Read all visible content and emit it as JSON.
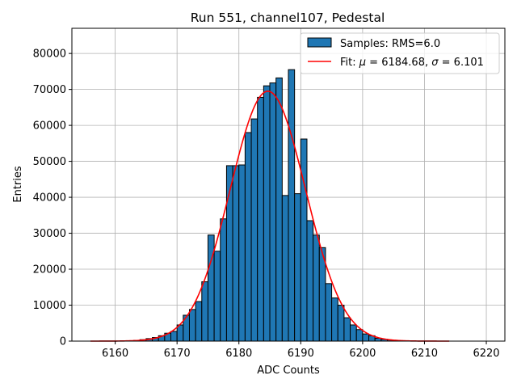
{
  "chart_data": {
    "type": "bar",
    "title": "Run 551, channel107, Pedestal",
    "xlabel": "ADC Counts",
    "ylabel": "Entries",
    "xlim": [
      6153,
      6223
    ],
    "ylim": [
      0,
      87000
    ],
    "xticks": [
      6160,
      6170,
      6180,
      6190,
      6200,
      6210,
      6220
    ],
    "yticks": [
      0,
      10000,
      20000,
      30000,
      40000,
      50000,
      60000,
      70000,
      80000
    ],
    "grid": true,
    "legend_position": "top-right",
    "colors": {
      "bar_fill": "#1f77b4",
      "bar_edge": "#000000",
      "fit_line": "#ff0000",
      "grid": "#b0b0b0"
    },
    "histogram": {
      "name": "Samples: RMS=6.0",
      "bin_width": 1,
      "bins_start": [
        6163,
        6164,
        6165,
        6166,
        6167,
        6168,
        6169,
        6170,
        6171,
        6172,
        6173,
        6174,
        6175,
        6176,
        6177,
        6178,
        6179,
        6180,
        6181,
        6182,
        6183,
        6184,
        6185,
        6186,
        6187,
        6188,
        6189,
        6190,
        6191,
        6192,
        6193,
        6194,
        6195,
        6196,
        6197,
        6198,
        6199,
        6200,
        6201,
        6202,
        6203,
        6204,
        6205
      ],
      "values": [
        200,
        400,
        700,
        1000,
        1500,
        2200,
        2700,
        4500,
        7200,
        8800,
        11000,
        16500,
        29500,
        25000,
        34000,
        48800,
        48800,
        49000,
        58000,
        61800,
        67800,
        71000,
        71800,
        73200,
        40500,
        75500,
        41000,
        56200,
        33500,
        29500,
        26000,
        16000,
        12000,
        10000,
        6500,
        4500,
        3200,
        2000,
        1500,
        800,
        500,
        300,
        150
      ]
    },
    "fit": {
      "name_prefix": "Fit: ",
      "mu_symbol": "μ",
      "sigma_symbol": "σ",
      "mu": "6184.68",
      "sigma": "6.101",
      "mu_value": 6184.68,
      "sigma_value": 6.101,
      "amplitude": 69500,
      "x_range": [
        6156,
        6214
      ]
    }
  }
}
